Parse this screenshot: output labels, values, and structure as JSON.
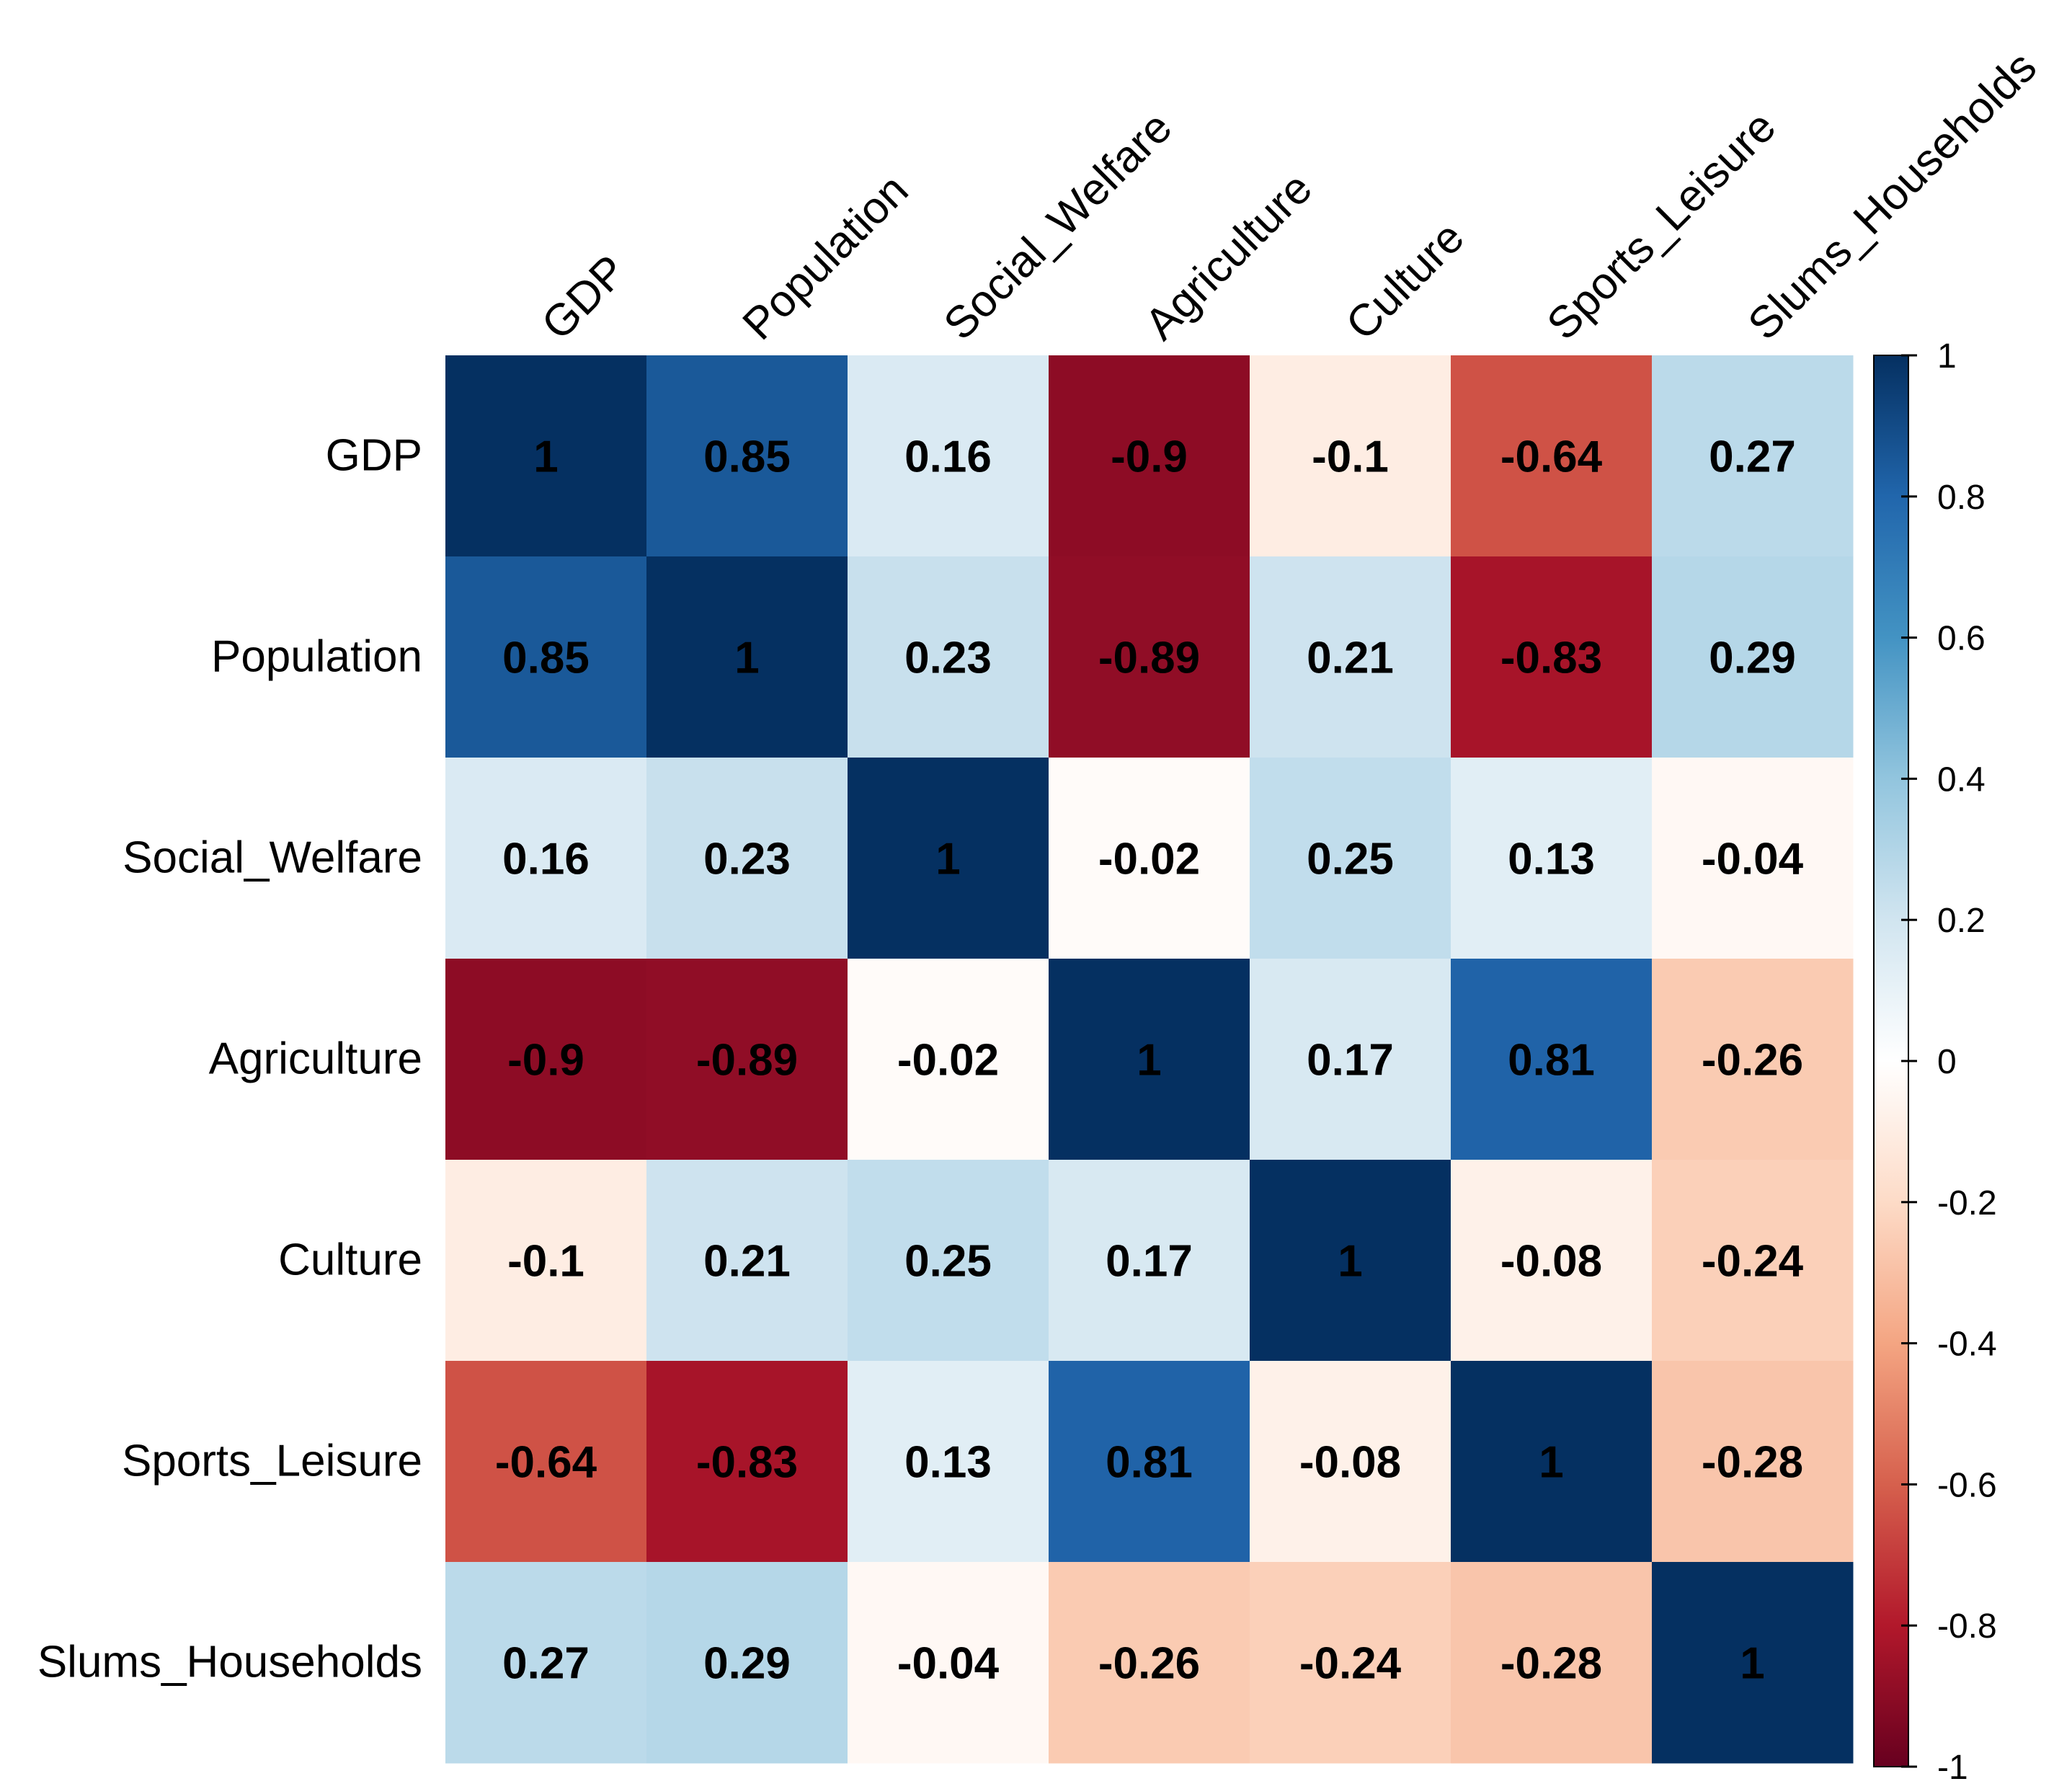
{
  "chart_data": {
    "type": "heatmap",
    "title": "",
    "variables": [
      "GDP",
      "Population",
      "Social_Welfare",
      "Agriculture",
      "Culture",
      "Sports_Leisure",
      "Slums_Households"
    ],
    "matrix": [
      [
        1,
        0.85,
        0.16,
        -0.9,
        -0.1,
        -0.64,
        0.27
      ],
      [
        0.85,
        1,
        0.23,
        -0.89,
        0.21,
        -0.83,
        0.29
      ],
      [
        0.16,
        0.23,
        1,
        -0.02,
        0.25,
        0.13,
        -0.04
      ],
      [
        -0.9,
        -0.89,
        -0.02,
        1,
        0.17,
        0.81,
        -0.26
      ],
      [
        -0.1,
        0.21,
        0.25,
        0.17,
        1,
        -0.08,
        -0.24
      ],
      [
        -0.64,
        -0.83,
        0.13,
        0.81,
        -0.08,
        1,
        -0.28
      ],
      [
        0.27,
        0.29,
        -0.04,
        -0.26,
        -0.24,
        -0.28,
        1
      ]
    ],
    "value_range": [
      -1,
      1
    ],
    "colorbar": {
      "ticks": [
        1,
        0.8,
        0.6,
        0.4,
        0.2,
        0,
        -0.2,
        -0.4,
        -0.6,
        -0.8,
        -1
      ],
      "tick_labels": [
        "1",
        "0.8",
        "0.6",
        "0.4",
        "0.2",
        "0",
        "-0.2",
        "-0.4",
        "-0.6",
        "-0.8",
        "-1"
      ],
      "placement": "right"
    },
    "colors": {
      "negative_end": "#67001F",
      "positive_end": "#053061",
      "text": "#000000"
    },
    "palette": [
      "#67001F",
      "#B2182B",
      "#D6604D",
      "#F4A582",
      "#FDDBC7",
      "#FFFFFF",
      "#D1E5F0",
      "#92C5DE",
      "#4393C3",
      "#2166AC",
      "#053061"
    ]
  }
}
